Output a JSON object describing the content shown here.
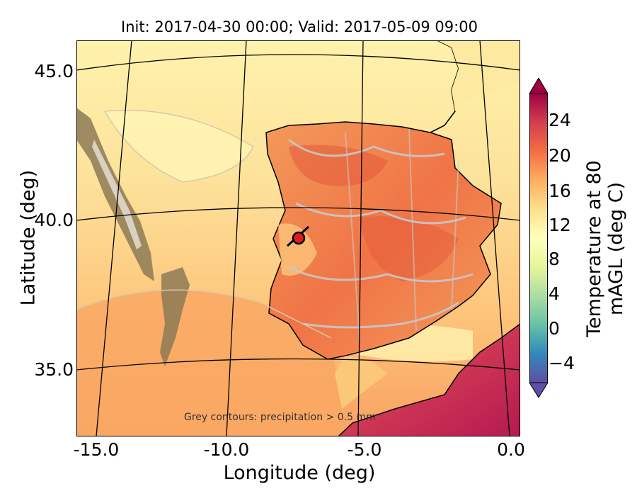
{
  "title": "Init: 2017-04-30 00:00; Valid: 2017-05-09 09:00",
  "x_axis": {
    "label": "Longitude (deg)",
    "ticks": [
      "-15.0",
      "-10.0",
      "-5.0",
      "0.0"
    ]
  },
  "y_axis": {
    "label": "Latitude (deg)",
    "ticks": [
      "45.0",
      "40.0",
      "35.0"
    ]
  },
  "colorbar": {
    "label": "Temperature at 80 mAGL (deg C)",
    "ticks": [
      "24",
      "20",
      "16",
      "12",
      "8",
      "4",
      "0",
      "−4"
    ],
    "range": [
      -6,
      26
    ],
    "colormap": [
      "#5e4fa2",
      "#3288bd",
      "#66c2a5",
      "#abdda4",
      "#e6f598",
      "#ffffbf",
      "#fee08b",
      "#fdae61",
      "#f46d43",
      "#d53e4f",
      "#9e0142"
    ]
  },
  "annotation": "Grey contours: precipitation > 0.5 mm",
  "marker": {
    "lon": -7.7,
    "lat": 39.3,
    "color": "#e31a1c"
  },
  "colors": {
    "ocean_warm": "#fdd48a",
    "ocean_cool": "#fef0a8",
    "land_hot": "#f07c4a",
    "precip_contour": "#c8c8c8"
  }
}
